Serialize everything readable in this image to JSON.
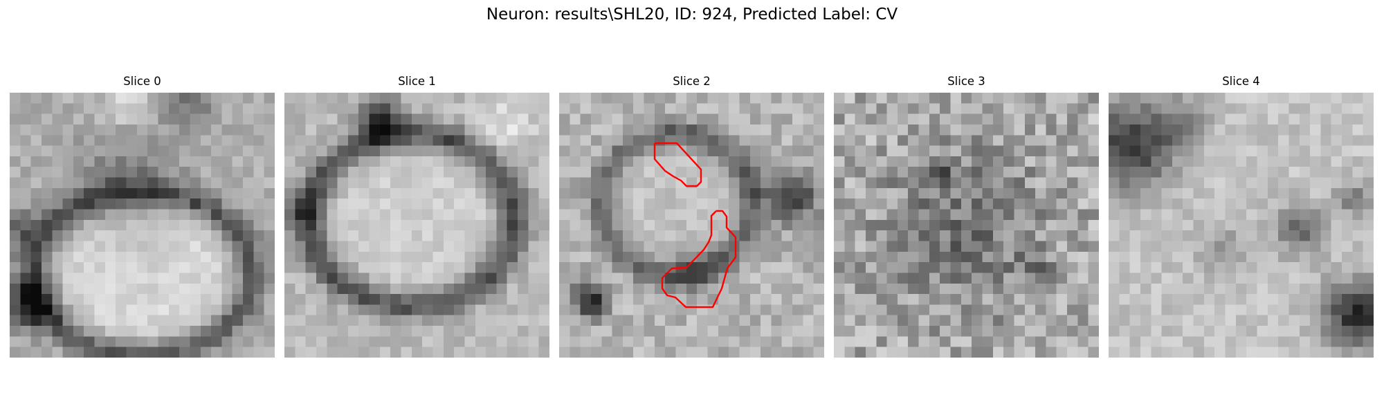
{
  "figure": {
    "title": "Neuron: results\\SHL20, ID: 924, Predicted Label: CV"
  },
  "panels": [
    {
      "title": "Slice 0",
      "image": "grayscale-em-slice",
      "has_contour": false
    },
    {
      "title": "Slice 1",
      "image": "grayscale-em-slice",
      "has_contour": false
    },
    {
      "title": "Slice 2",
      "image": "grayscale-em-slice",
      "has_contour": true,
      "contour_color": "#ff0000"
    },
    {
      "title": "Slice 3",
      "image": "grayscale-em-slice",
      "has_contour": false
    },
    {
      "title": "Slice 4",
      "image": "grayscale-em-slice",
      "has_contour": false
    }
  ],
  "colors": {
    "background": "#ffffff",
    "contour": "#ff0000"
  }
}
